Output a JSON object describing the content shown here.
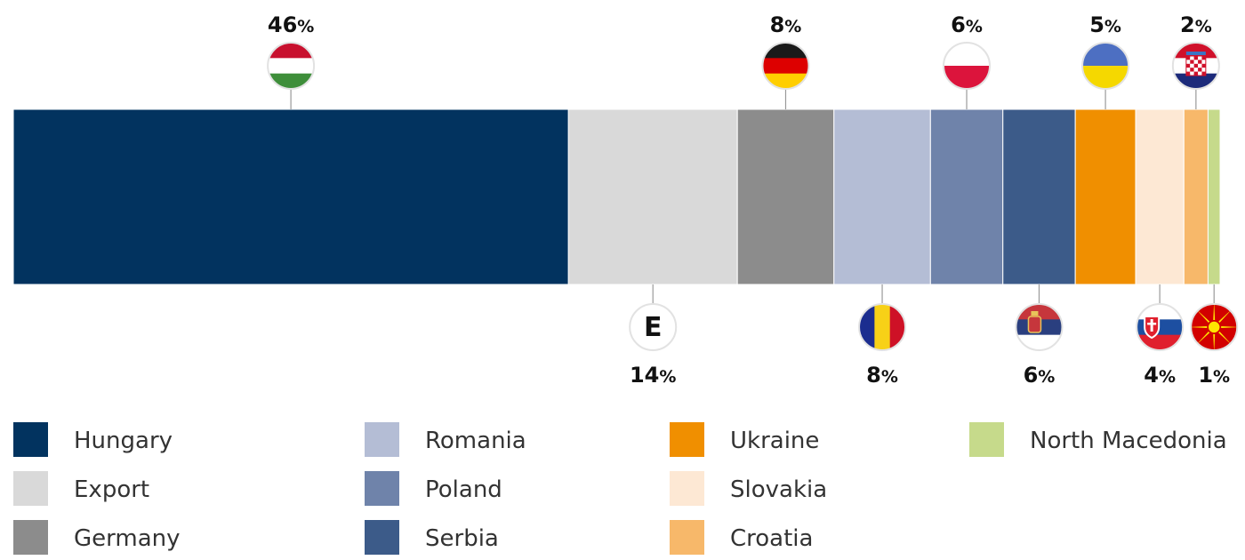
{
  "chart_data": {
    "type": "bar",
    "stacked": true,
    "orientation": "horizontal",
    "categories": [
      "Hungary",
      "Export",
      "Germany",
      "Romania",
      "Poland",
      "Serbia",
      "Ukraine",
      "Slovakia",
      "Croatia",
      "North Macedonia"
    ],
    "values": [
      46,
      14,
      8,
      8,
      6,
      6,
      5,
      4,
      2,
      1
    ],
    "labels": [
      "46",
      "14",
      "8",
      "8",
      "6",
      "6",
      "5",
      "4",
      "2",
      "1"
    ],
    "unit_sign": "%",
    "export_badge": "E",
    "legend_placement": "bottom",
    "colors": {
      "Hungary": "#02335f",
      "Export": "#d9d9d9",
      "Germany": "#8c8c8c",
      "Romania": "#b4bdd5",
      "Poland": "#6f83aa",
      "Serbia": "#3c5b89",
      "Ukraine": "#f08f00",
      "Slovakia": "#fde8d4",
      "Croatia": "#f7b86a",
      "North Macedonia": "#c6da8b"
    },
    "flag_icons": [
      "hungary-flag-icon",
      "export-e-icon",
      "germany-flag-icon",
      "romania-flag-icon",
      "poland-flag-icon",
      "serbia-flag-icon",
      "ukraine-flag-icon",
      "slovakia-flag-icon",
      "croatia-flag-icon",
      "north-macedonia-flag-icon"
    ],
    "label_side": [
      "top",
      "bottom",
      "top",
      "bottom",
      "top",
      "bottom",
      "top",
      "bottom",
      "top",
      "bottom"
    ]
  }
}
